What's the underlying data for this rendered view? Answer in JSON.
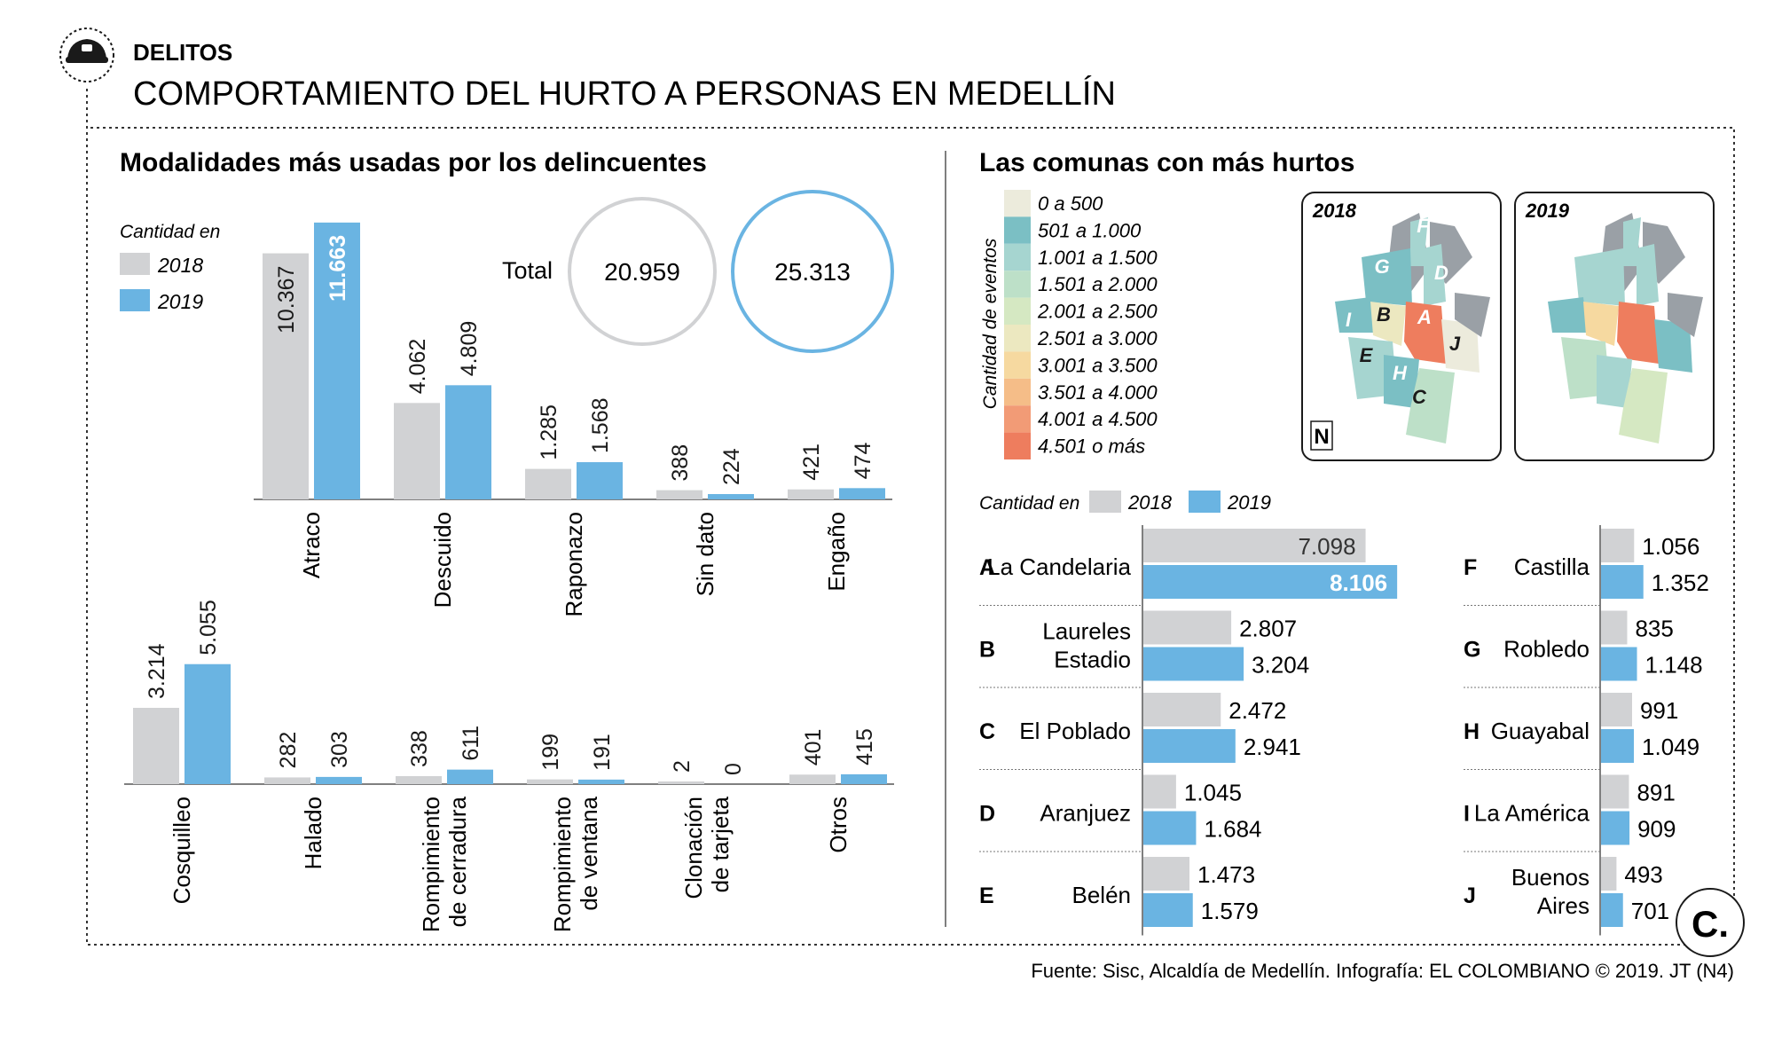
{
  "header": {
    "section": "DELITOS",
    "title": "COMPORTAMIENTO DEL HURTO A PERSONAS EN MEDELLÍN",
    "icon": "police-cap-icon"
  },
  "left": {
    "title": "Modalidades más usadas por los delincuentes",
    "legend_title": "Cantidad en",
    "legend": [
      "2018",
      "2019"
    ],
    "total_label": "Total",
    "totals": [
      "20.959",
      "25.313"
    ]
  },
  "right": {
    "title": "Las comunas con más hurtos",
    "scale_title": "Cantidad de eventos",
    "scale": [
      {
        "label": "0 a 500",
        "color": "#ecebdc"
      },
      {
        "label": "501 a 1.000",
        "color": "#7bbfc4"
      },
      {
        "label": "1.001 a 1.500",
        "color": "#a6d5d0"
      },
      {
        "label": "1.501 a 2.000",
        "color": "#bde0c8"
      },
      {
        "label": "2.001 a 2.500",
        "color": "#d5e8c2"
      },
      {
        "label": "2.501 a 3.000",
        "color": "#ece8c0"
      },
      {
        "label": "3.001 a 3.500",
        "color": "#f6d9a0"
      },
      {
        "label": "3.501 a 4.000",
        "color": "#f5bd88"
      },
      {
        "label": "4.001 a 4.500",
        "color": "#f29b76"
      },
      {
        "label": "4.501 o más",
        "color": "#ee7d5e"
      }
    ],
    "maps": [
      "2018",
      "2019"
    ],
    "map_letters": [
      "A",
      "B",
      "C",
      "D",
      "E",
      "F",
      "G",
      "H",
      "I",
      "J"
    ],
    "north": "N",
    "legend_title": "Cantidad en",
    "legend": [
      "2018",
      "2019"
    ]
  },
  "colors": {
    "y2018": "#d1d2d4",
    "y2019": "#6ab4e2",
    "divider": "#555555"
  },
  "chart_data": [
    {
      "type": "bar",
      "title": "Modalidades más usadas por los delincuentes",
      "categories": [
        "Atraco",
        "Descuido",
        "Raponazo",
        "Sin dato",
        "Engaño"
      ],
      "series": [
        {
          "name": "2018",
          "values": [
            10367,
            4062,
            1285,
            388,
            421
          ],
          "labels": [
            "10.367",
            "4.062",
            "1.285",
            "388",
            "421"
          ]
        },
        {
          "name": "2019",
          "values": [
            11663,
            4809,
            1568,
            224,
            474
          ],
          "labels": [
            "11.663",
            "4.809",
            "1.568",
            "224",
            "474"
          ]
        }
      ]
    },
    {
      "type": "bar",
      "categories": [
        "Cosquilleo",
        "Halado",
        "Rompimiento de cerradura",
        "Rompimiento de ventana",
        "Clonación de tarjeta",
        "Otros"
      ],
      "series": [
        {
          "name": "2018",
          "values": [
            3214,
            282,
            338,
            199,
            2,
            401
          ],
          "labels": [
            "3.214",
            "282",
            "338",
            "199",
            "2",
            "401"
          ]
        },
        {
          "name": "2019",
          "values": [
            5055,
            303,
            611,
            191,
            0,
            415
          ],
          "labels": [
            "5.055",
            "303",
            "611",
            "191",
            "0",
            "415"
          ]
        }
      ]
    },
    {
      "type": "bar",
      "title": "Las comunas con más hurtos",
      "categories": [
        {
          "letter": "A",
          "name": "La Candelaria"
        },
        {
          "letter": "B",
          "name": "Laureles Estadio"
        },
        {
          "letter": "C",
          "name": "El Poblado"
        },
        {
          "letter": "D",
          "name": "Aranjuez"
        },
        {
          "letter": "E",
          "name": "Belén"
        },
        {
          "letter": "F",
          "name": "Castilla"
        },
        {
          "letter": "G",
          "name": "Robledo"
        },
        {
          "letter": "H",
          "name": "Guayabal"
        },
        {
          "letter": "I",
          "name": "La América"
        },
        {
          "letter": "J",
          "name": "Buenos Aires"
        }
      ],
      "series": [
        {
          "name": "2018",
          "values": [
            7098,
            2807,
            2472,
            1045,
            1473,
            1056,
            835,
            991,
            891,
            493
          ],
          "labels": [
            "7.098",
            "2.807",
            "2.472",
            "1.045",
            "1.473",
            "1.056",
            "835",
            "991",
            "891",
            "493"
          ]
        },
        {
          "name": "2019",
          "values": [
            8106,
            3204,
            2941,
            1684,
            1579,
            1352,
            1148,
            1049,
            909,
            701
          ],
          "labels": [
            "8.106",
            "3.204",
            "2.941",
            "1.684",
            "1.579",
            "1.352",
            "1.148",
            "1.049",
            "909",
            "701"
          ]
        }
      ]
    }
  ],
  "footer": "Fuente: Sisc, Alcaldía de Medellín. Infografía: EL COLOMBIANO © 2019. JT (N4)",
  "logo": "C."
}
